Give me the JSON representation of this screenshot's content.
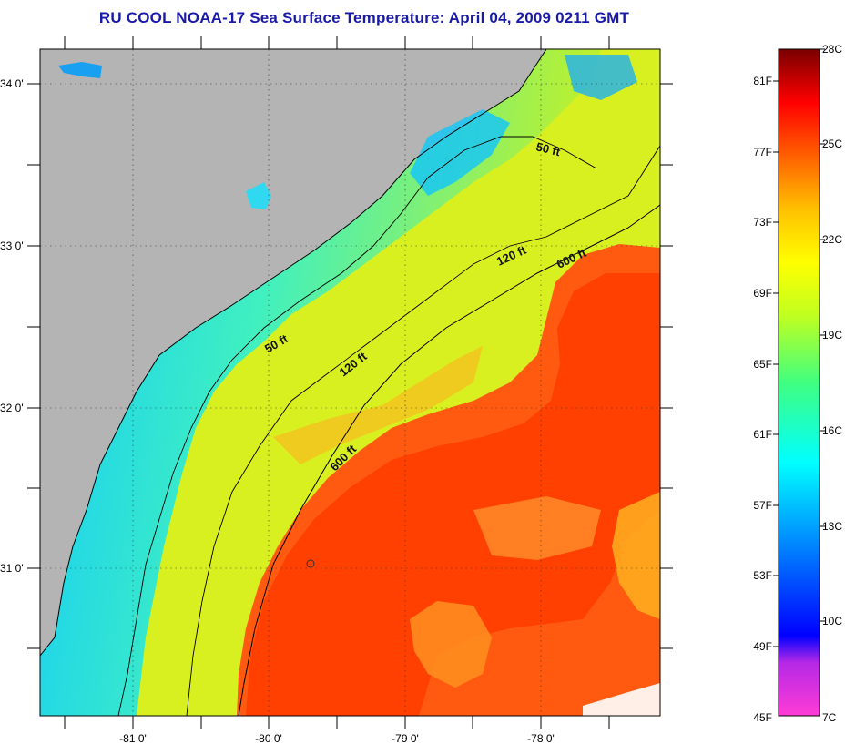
{
  "title": "RU COOL  NOAA-17  Sea Surface Temperature:  April 04, 2009 0211 GMT",
  "lon_ticks": [
    "-81 0'",
    "-80 0'",
    "-79 0'",
    "-78 0'"
  ],
  "lat_ticks": [
    "34 0'",
    "33 0'",
    "32 0'",
    "31 0'"
  ],
  "contours": {
    "label_50a": "50 ft",
    "label_50b": "50 ft",
    "label_120a": "120 ft",
    "label_120b": "120 ft",
    "label_600a": "600 ft",
    "label_600b": "600 ft"
  },
  "colorbar": {
    "fahrenheit": [
      "81F",
      "77F",
      "73F",
      "69F",
      "65F",
      "61F",
      "57F",
      "53F",
      "49F",
      "45F"
    ],
    "celsius": [
      "28C",
      "25C",
      "22C",
      "19C",
      "16C",
      "13C",
      "10C",
      "7C"
    ]
  },
  "colors": {
    "land": "#b4b4b4",
    "title": "#1a1aa8",
    "warm_gulfstream": "#ff4a00",
    "shelf_cool": "#18e8f0"
  }
}
